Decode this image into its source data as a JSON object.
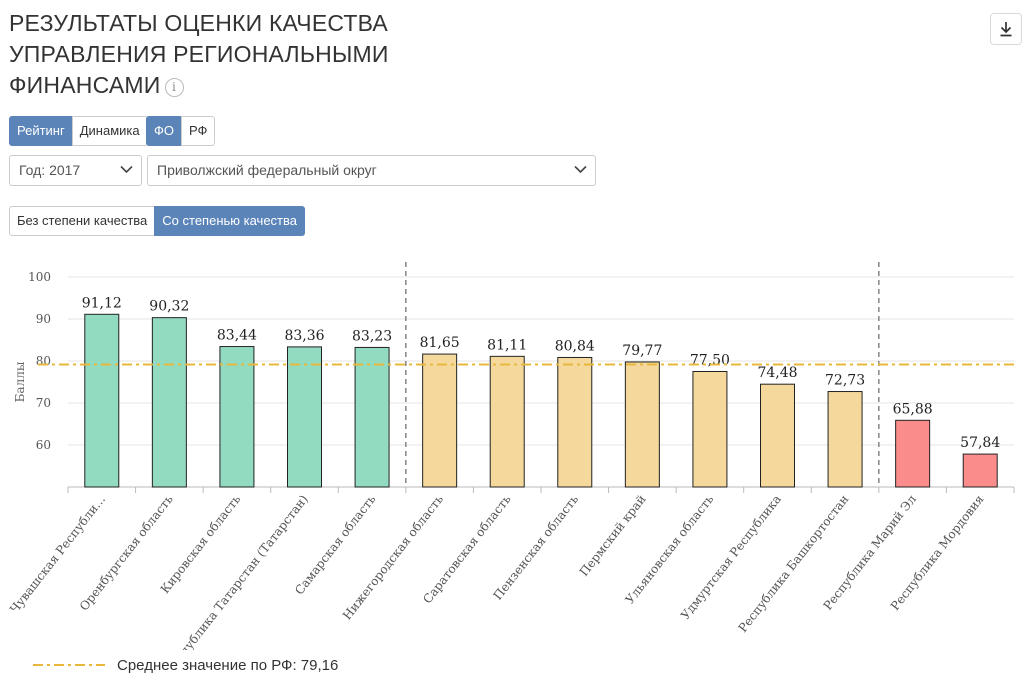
{
  "header": {
    "title": "РЕЗУЛЬТАТЫ ОЦЕНКИ КАЧЕСТВА УПРАВЛЕНИЯ РЕГИОНАЛЬНЫМИ ФИНАНСАМИ",
    "info_icon_text": "i",
    "download_icon": "download-icon"
  },
  "toggles": {
    "mode": [
      "Рейтинг",
      "Динамика"
    ],
    "scope": [
      "ФО",
      "РФ"
    ],
    "quality": [
      "Без степени качества",
      "Со степенью качества"
    ]
  },
  "filters": {
    "year": "Год: 2017",
    "district": "Приволжский федеральный округ"
  },
  "colors": {
    "accent": "#5b84b8",
    "high": "#92dbc1",
    "medium": "#f5d99c",
    "low": "#fb8c8c",
    "average_line": "#e8b73c"
  },
  "chart_data": {
    "type": "bar",
    "title": "",
    "ylabel": "Баллы",
    "xlabel": "",
    "ylim": [
      50,
      100
    ],
    "yticks": [
      60,
      70,
      80,
      90,
      100
    ],
    "categories": [
      "Чувашская Республи…",
      "Оренбургская область",
      "Кировская область",
      "Республика Татарстан (Татарстан)",
      "Самарская область",
      "Нижегородская область",
      "Саратовская область",
      "Пензенская область",
      "Пермский край",
      "Ульяновская область",
      "Удмуртская Республика",
      "Республика Башкортостан",
      "Республика Марий Эл",
      "Республика Мордовия"
    ],
    "values": [
      91.12,
      90.32,
      83.44,
      83.36,
      83.23,
      81.65,
      81.11,
      80.84,
      79.77,
      77.5,
      74.48,
      72.73,
      65.88,
      57.84
    ],
    "value_labels": [
      "91,12",
      "90,32",
      "83,44",
      "83,36",
      "83,23",
      "81,65",
      "81,11",
      "80,84",
      "79,77",
      "77,50",
      "74,48",
      "72,73",
      "65,88",
      "57,84"
    ],
    "groups": [
      "high",
      "high",
      "high",
      "high",
      "high",
      "medium",
      "medium",
      "medium",
      "medium",
      "medium",
      "medium",
      "medium",
      "low",
      "low"
    ],
    "group_separators_after": [
      4,
      11
    ],
    "average": {
      "value": 79.16,
      "label": "Среднее значение по РФ: 79,16"
    },
    "grid": true
  }
}
